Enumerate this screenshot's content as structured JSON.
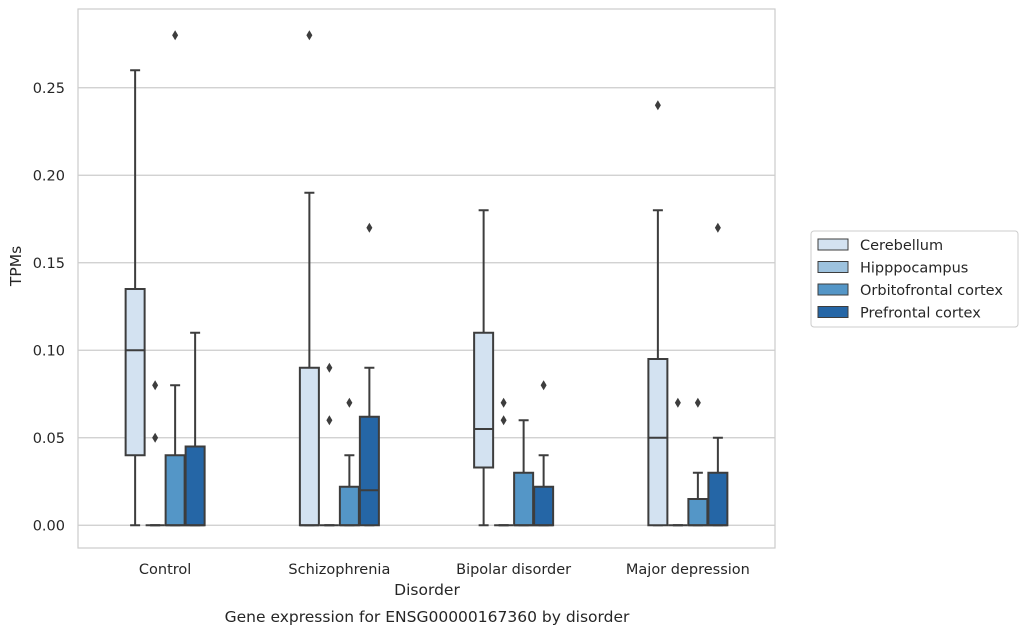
{
  "chart_data": {
    "type": "box",
    "caption": "Gene expression for ENSG00000167360 by disorder",
    "xlabel": "Disorder",
    "ylabel": "TPMs",
    "ylim": [
      -0.013,
      0.295
    ],
    "yticks": [
      0.0,
      0.05,
      0.1,
      0.15,
      0.2,
      0.25
    ],
    "ytick_labels": [
      "0.00",
      "0.05",
      "0.10",
      "0.15",
      "0.20",
      "0.25"
    ],
    "grid": "horizontal",
    "legend_position": "outside-right",
    "categories": [
      "Control",
      "Schizophrenia",
      "Bipolar disorder",
      "Major depression"
    ],
    "series": [
      {
        "name": "Cerebellum",
        "color": "#d3e2f1",
        "boxes": [
          {
            "whislo": 0.0,
            "q1": 0.04,
            "med": 0.1,
            "q3": 0.135,
            "whishi": 0.26,
            "fliers": []
          },
          {
            "whislo": 0.0,
            "q1": 0.0,
            "med": 0.0,
            "q3": 0.09,
            "whishi": 0.19,
            "fliers": [
              0.28
            ]
          },
          {
            "whislo": 0.0,
            "q1": 0.033,
            "med": 0.055,
            "q3": 0.11,
            "whishi": 0.18,
            "fliers": []
          },
          {
            "whislo": 0.0,
            "q1": 0.0,
            "med": 0.05,
            "q3": 0.095,
            "whishi": 0.18,
            "fliers": [
              0.24
            ]
          }
        ]
      },
      {
        "name": "Hipppocampus",
        "color": "#9dc2de",
        "boxes": [
          {
            "whislo": 0.0,
            "q1": 0.0,
            "med": 0.0,
            "q3": 0.0,
            "whishi": 0.0,
            "fliers": [
              0.05,
              0.08
            ]
          },
          {
            "whislo": 0.0,
            "q1": 0.0,
            "med": 0.0,
            "q3": 0.0,
            "whishi": 0.0,
            "fliers": [
              0.06,
              0.09
            ]
          },
          {
            "whislo": 0.0,
            "q1": 0.0,
            "med": 0.0,
            "q3": 0.0,
            "whishi": 0.0,
            "fliers": [
              0.06,
              0.07
            ]
          },
          {
            "whislo": 0.0,
            "q1": 0.0,
            "med": 0.0,
            "q3": 0.0,
            "whishi": 0.0,
            "fliers": [
              0.07
            ]
          }
        ]
      },
      {
        "name": "Orbitofrontal cortex",
        "color": "#5496c7",
        "boxes": [
          {
            "whislo": 0.0,
            "q1": 0.0,
            "med": 0.0,
            "q3": 0.04,
            "whishi": 0.08,
            "fliers": [
              0.28
            ]
          },
          {
            "whislo": 0.0,
            "q1": 0.0,
            "med": 0.0,
            "q3": 0.022,
            "whishi": 0.04,
            "fliers": [
              0.07
            ]
          },
          {
            "whislo": 0.0,
            "q1": 0.0,
            "med": 0.0,
            "q3": 0.03,
            "whishi": 0.06,
            "fliers": []
          },
          {
            "whislo": 0.0,
            "q1": 0.0,
            "med": 0.0,
            "q3": 0.015,
            "whishi": 0.03,
            "fliers": [
              0.07
            ]
          }
        ]
      },
      {
        "name": "Prefrontal cortex",
        "color": "#2566a6",
        "boxes": [
          {
            "whislo": 0.0,
            "q1": 0.0,
            "med": 0.0,
            "q3": 0.045,
            "whishi": 0.11,
            "fliers": []
          },
          {
            "whislo": 0.0,
            "q1": 0.0,
            "med": 0.02,
            "q3": 0.062,
            "whishi": 0.09,
            "fliers": [
              0.17
            ]
          },
          {
            "whislo": 0.0,
            "q1": 0.0,
            "med": 0.0,
            "q3": 0.022,
            "whishi": 0.04,
            "fliers": [
              0.08
            ]
          },
          {
            "whislo": 0.0,
            "q1": 0.0,
            "med": 0.0,
            "q3": 0.03,
            "whishi": 0.05,
            "fliers": [
              0.17
            ]
          }
        ]
      }
    ]
  },
  "colors": {
    "box_edge": "#3d3d3d",
    "grid": "#cccccc",
    "frame": "#cccccc",
    "text": "#262626"
  }
}
